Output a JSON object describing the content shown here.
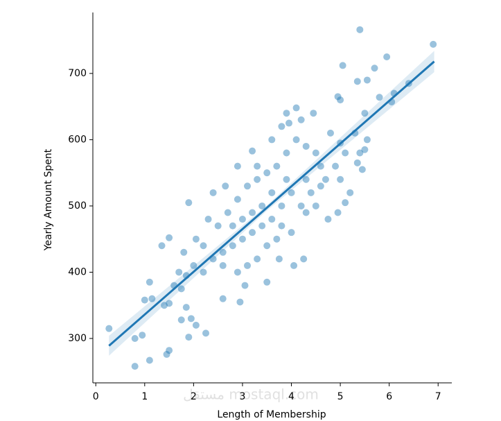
{
  "chart_data": {
    "type": "scatter",
    "xlabel": "Length of Membership",
    "ylabel": "Yearly Amount Spent",
    "xlim": [
      -0.06,
      7.28
    ],
    "ylim": [
      233,
      792
    ],
    "xticks": [
      0,
      1,
      2,
      3,
      4,
      5,
      6,
      7
    ],
    "yticks": [
      300,
      400,
      500,
      600,
      700
    ],
    "watermark": "مستقل mostaql.com",
    "series": [
      {
        "color": "#1f77b4",
        "x": [
          0.27,
          0.8,
          0.8,
          0.95,
          1.1,
          1.45,
          1.5,
          1.9,
          2.25,
          2.05,
          1.95,
          1.75,
          1.85,
          1.0,
          1.15,
          1.1,
          1.4,
          1.5,
          1.35,
          1.5,
          1.9,
          5.4,
          6.9,
          5.95,
          5.05,
          5.7,
          5.35,
          6.4,
          5.55,
          6.1,
          5.8,
          6.05,
          4.95,
          5.0,
          4.45,
          4.1,
          3.9,
          5.5,
          3.95,
          4.2,
          3.2,
          3.3,
          2.65,
          2.9,
          2.3,
          2.05,
          2.0,
          1.85,
          1.8,
          1.75,
          1.6,
          1.7,
          2.6,
          2.95,
          3.05,
          3.5,
          4.05,
          4.25,
          3.75,
          4.3,
          4.75,
          4.95,
          5.1,
          5.0,
          5.2,
          5.35,
          5.45,
          5.4,
          5.5,
          5.55,
          5.3,
          5.0,
          4.8,
          4.6,
          4.5,
          4.3,
          4.0,
          3.8,
          3.6,
          3.4,
          3.2,
          3.0,
          2.8,
          2.6,
          2.4,
          2.2,
          2.5,
          2.7,
          2.9,
          3.1,
          3.3,
          3.5,
          3.7,
          3.9,
          4.1,
          4.3,
          3.6,
          3.4,
          3.2,
          3.0,
          2.8,
          3.8,
          4.0,
          4.2,
          4.4,
          4.6,
          3.5,
          3.3,
          3.1,
          2.9,
          3.7,
          4.5,
          4.7,
          3.9,
          2.4,
          2.2,
          2.6,
          3.6,
          3.8,
          4.9,
          5.1
        ],
        "values": [
          315,
          258,
          300,
          305,
          267,
          276,
          282,
          302,
          308,
          320,
          330,
          328,
          347,
          358,
          360,
          385,
          350,
          353,
          440,
          452,
          505,
          766,
          744,
          725,
          712,
          708,
          688,
          685,
          690,
          670,
          664,
          657,
          665,
          660,
          640,
          648,
          640,
          640,
          625,
          630,
          583,
          560,
          530,
          560,
          480,
          450,
          410,
          395,
          430,
          375,
          380,
          400,
          360,
          355,
          380,
          385,
          410,
          420,
          420,
          490,
          480,
          490,
          505,
          540,
          520,
          565,
          555,
          580,
          585,
          600,
          610,
          595,
          610,
          560,
          580,
          540,
          520,
          500,
          480,
          470,
          460,
          450,
          440,
          430,
          420,
          440,
          470,
          490,
          510,
          530,
          540,
          550,
          560,
          580,
          600,
          590,
          520,
          500,
          490,
          480,
          470,
          470,
          460,
          500,
          520,
          530,
          440,
          420,
          410,
          400,
          450,
          500,
          540,
          540,
          520,
          400,
          410,
          600,
          620,
          560,
          580
        ]
      }
    ],
    "regression": {
      "x": [
        0.27,
        6.92
      ],
      "y": [
        289,
        718
      ]
    },
    "ci_band": {
      "x": [
        0.27,
        3.5,
        6.92
      ],
      "lower": [
        274,
        493,
        702
      ],
      "upper": [
        304,
        501,
        734
      ]
    }
  }
}
